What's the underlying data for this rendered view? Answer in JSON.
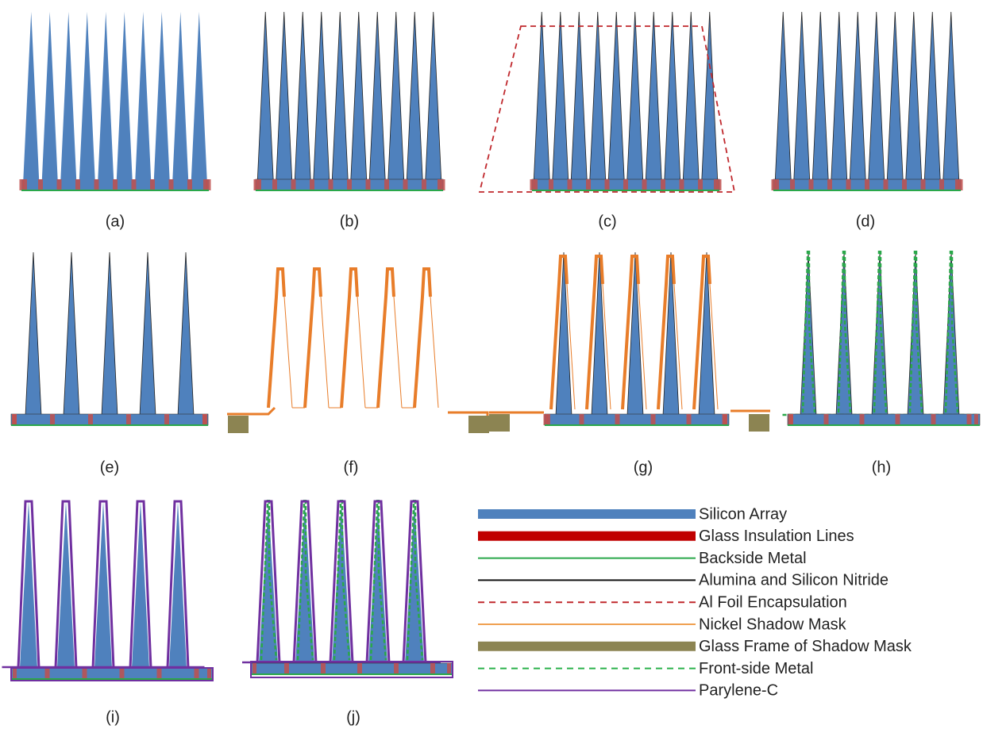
{
  "panels": [
    {
      "label": "(a)"
    },
    {
      "label": "(b)"
    },
    {
      "label": "(c)"
    },
    {
      "label": "(d)"
    },
    {
      "label": "(e)"
    },
    {
      "label": "(f)"
    },
    {
      "label": "(g)"
    },
    {
      "label": "(h)"
    },
    {
      "label": "(i)"
    },
    {
      "label": "(j)"
    }
  ],
  "legend": {
    "items": [
      {
        "label": "Silicon Array",
        "color": "#4f81bd",
        "style": "thick"
      },
      {
        "label": "Glass Insulation Lines",
        "color": "#c00000",
        "style": "thick"
      },
      {
        "label": "Backside Metal",
        "color": "#2aa84a",
        "style": "line"
      },
      {
        "label": "Alumina and Silicon Nitride",
        "color": "#111111",
        "style": "line"
      },
      {
        "label": "Al Foil Encapsulation",
        "color": "#c0282d",
        "style": "dashed"
      },
      {
        "label": "Nickel Shadow Mask",
        "color": "#f0a050",
        "style": "line"
      },
      {
        "label": "Glass Frame of Shadow Mask",
        "color": "#8c8452",
        "style": "thick"
      },
      {
        "label": "Front-side Metal",
        "color": "#2bb24c",
        "style": "dashed"
      },
      {
        "label": "Parylene-C",
        "color": "#7030a0",
        "style": "line"
      }
    ]
  }
}
